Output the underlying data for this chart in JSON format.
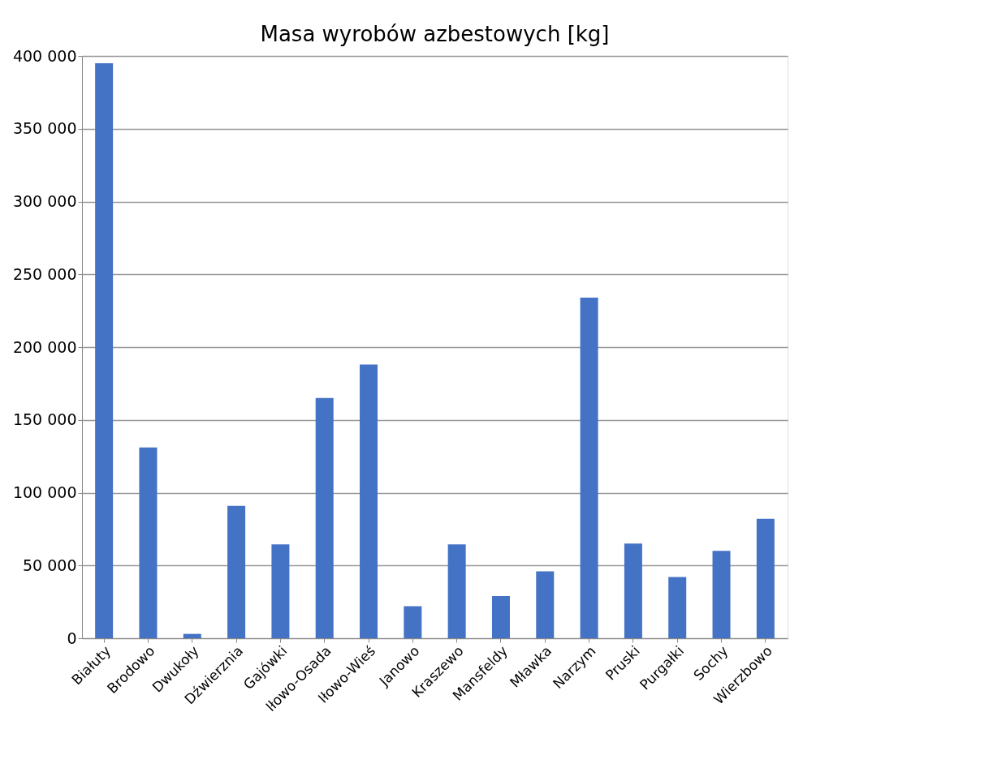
{
  "chart_data": {
    "type": "bar",
    "title": "Masa wyrobów azbestowych [kg]",
    "categories": [
      "Białuty",
      "Brodowo",
      "Dwukoły",
      "Dźwierznia",
      "Gajówki",
      "Iłowo-Osada",
      "Iłowo-Wieś",
      "Janowo",
      "Kraszewo",
      "Mansfeldy",
      "Mławka",
      "Narzym",
      "Pruski",
      "Purgałki",
      "Sochy",
      "Wierzbowo"
    ],
    "values": [
      395000,
      131000,
      3000,
      91000,
      64500,
      165000,
      188000,
      22000,
      64500,
      29000,
      46000,
      234000,
      65000,
      42000,
      60000,
      82000
    ],
    "color": "#4472c4",
    "ylim": [
      0,
      400000
    ],
    "yticks": [
      {
        "value": 0,
        "label": "0"
      },
      {
        "value": 50000,
        "label": "50 000"
      },
      {
        "value": 100000,
        "label": "100 000"
      },
      {
        "value": 150000,
        "label": "150 000"
      },
      {
        "value": 200000,
        "label": "200 000"
      },
      {
        "value": 250000,
        "label": "250 000"
      },
      {
        "value": 300000,
        "label": "300 000"
      },
      {
        "value": 350000,
        "label": "350 000"
      },
      {
        "value": 400000,
        "label": "400 000"
      }
    ],
    "grid": "y"
  }
}
